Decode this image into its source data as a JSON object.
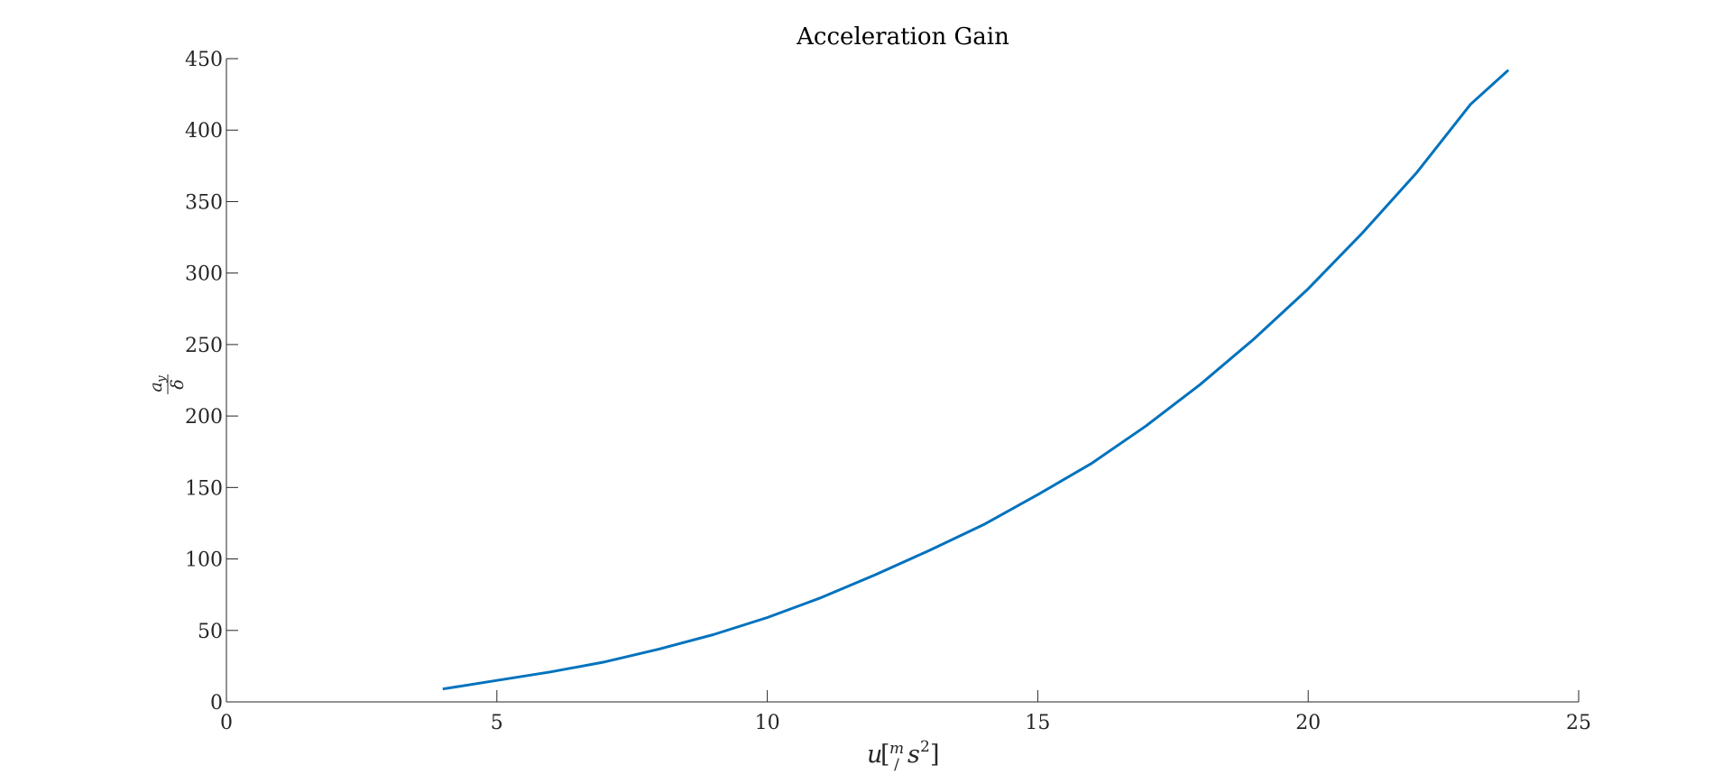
{
  "chart_data": {
    "type": "line",
    "title": "Acceleration Gain",
    "xlabel": "u[m/s²]",
    "ylabel": "a_y / δ",
    "xlim": [
      0,
      25
    ],
    "ylim": [
      0,
      450
    ],
    "xticks": [
      0,
      5,
      10,
      15,
      20,
      25
    ],
    "yticks": [
      0,
      50,
      100,
      150,
      200,
      250,
      300,
      350,
      400,
      450
    ],
    "xtick_labels": [
      "0",
      "5",
      "10",
      "15",
      "20",
      "25"
    ],
    "ytick_labels": [
      "0",
      "50",
      "100",
      "150",
      "200",
      "250",
      "300",
      "350",
      "400",
      "450"
    ],
    "grid": false,
    "colors": {
      "line": "#0072BD",
      "axis": "#262626"
    },
    "series": [
      {
        "x": [
          4,
          5,
          6,
          7,
          8,
          9,
          10,
          11,
          12,
          13,
          14,
          15,
          16,
          17,
          18,
          19,
          20,
          21,
          22,
          23,
          23.7
        ],
        "y": [
          9,
          15,
          21,
          28,
          37,
          47,
          59,
          73,
          89,
          106,
          124,
          145,
          167,
          193,
          222,
          254,
          289,
          328,
          370,
          418,
          442
        ]
      }
    ]
  }
}
